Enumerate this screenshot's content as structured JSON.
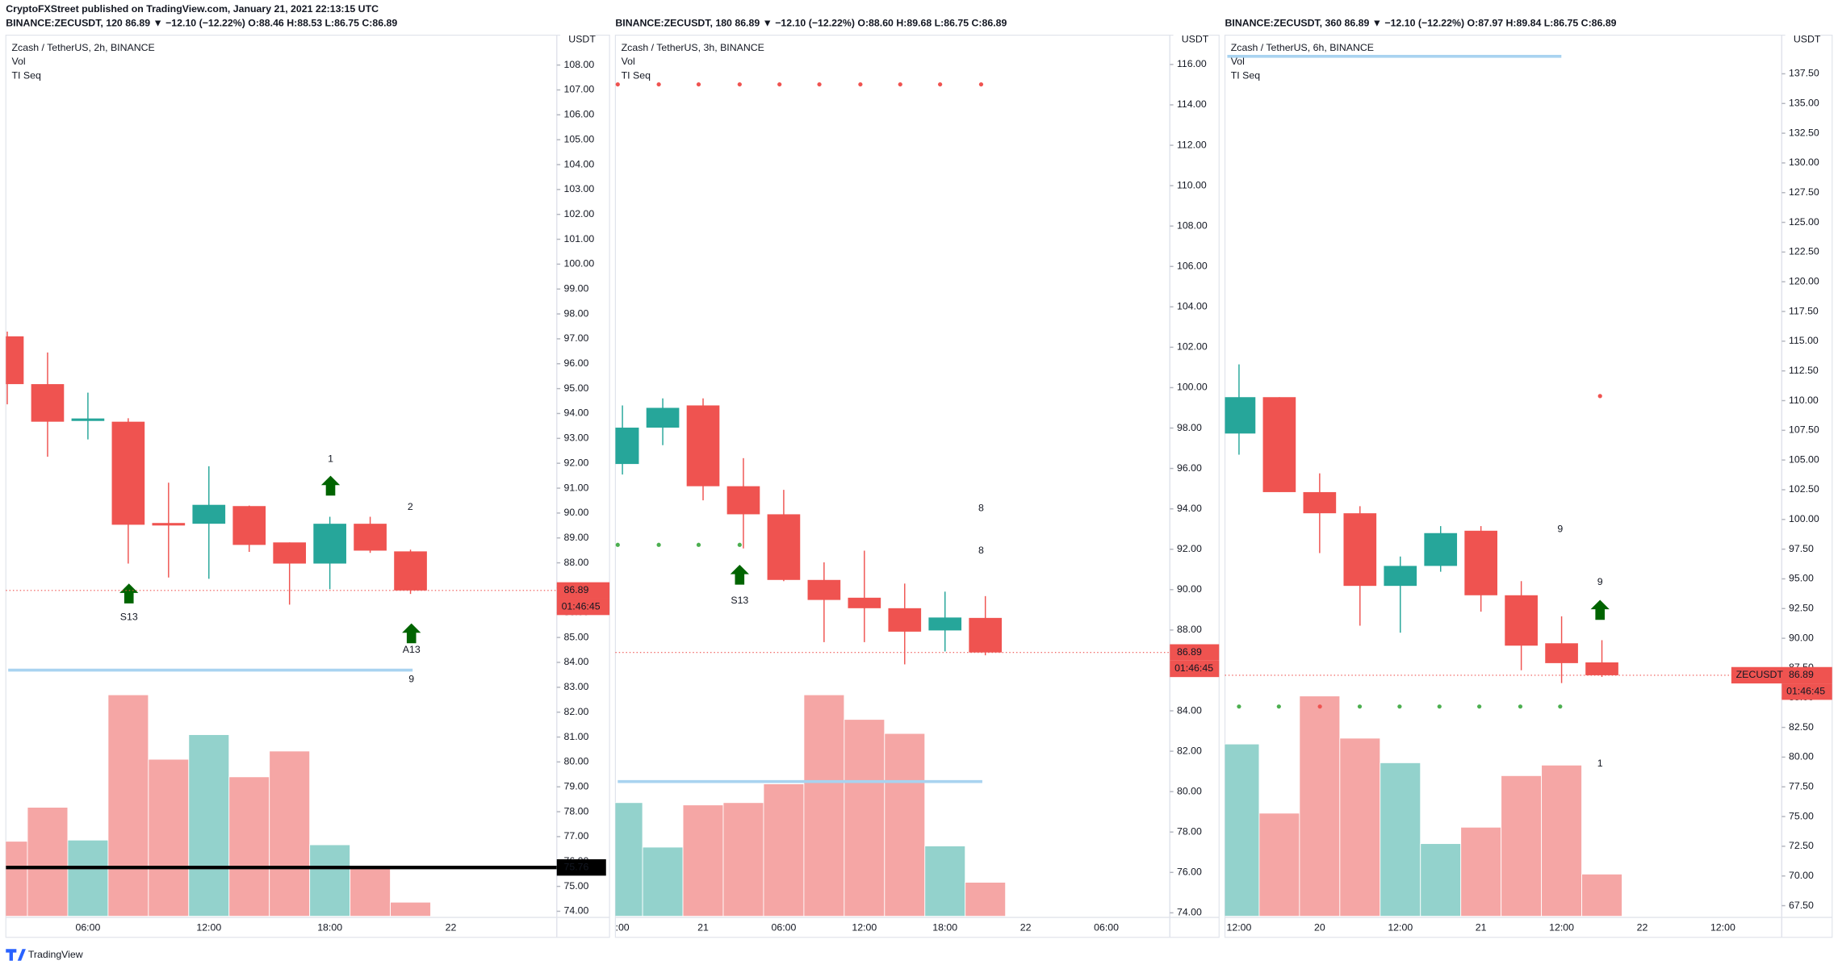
{
  "publisher_line": "CryptoFXStreet published on TradingView.com, January 21, 2021 22:13:15 UTC",
  "footer": "TradingView",
  "chart_data": [
    {
      "type": "candlestick",
      "symbol_line": "BINANCE:ZECUSDT, 120 86.89 ▼ −12.10 (−12.22%) O:88.46 H:88.53 L:86.75 C:86.89",
      "title": "Zcash / TetherUS, 2h, BINANCE",
      "indicators": [
        "Vol",
        "TI Seq"
      ],
      "unit": "USDT",
      "categories": [
        null,
        null,
        "06:00",
        null,
        null,
        "12:00",
        null,
        null,
        "18:00",
        null,
        null,
        "22"
      ],
      "open": [
        97.1,
        95.18,
        93.7,
        93.67,
        89.6,
        89.57,
        90.28,
        88.82,
        87.97,
        89.57,
        88.46,
        null
      ],
      "high": [
        97.29,
        96.45,
        94.84,
        93.81,
        91.22,
        91.88,
        90.3,
        88.82,
        89.85,
        89.85,
        88.53,
        null
      ],
      "low": [
        94.37,
        92.26,
        92.96,
        87.97,
        87.41,
        87.36,
        88.44,
        86.32,
        86.94,
        88.4,
        86.75,
        null
      ],
      "close": [
        95.18,
        93.67,
        93.8,
        89.53,
        89.5,
        90.33,
        88.72,
        87.97,
        89.57,
        88.49,
        86.89,
        null
      ],
      "volume": [
        64,
        93,
        65,
        189,
        134,
        155,
        119,
        141,
        61,
        42,
        12,
        null
      ],
      "up_color": "#26a69a",
      "down_color": "#ef5350",
      "volume_up_color": "#93d2cc",
      "volume_down_color": "#f5a6a5",
      "ylim": [
        73.8,
        109.2
      ],
      "yticks": [
        {
          "value": 74,
          "label": "74.00"
        },
        {
          "value": 75,
          "label": "75.00"
        },
        {
          "value": 76,
          "label": "76.00"
        },
        {
          "value": 77,
          "label": "77.00"
        },
        {
          "value": 78,
          "label": "78.00"
        },
        {
          "value": 79,
          "label": "79.00"
        },
        {
          "value": 80,
          "label": "80.00"
        },
        {
          "value": 81,
          "label": "81.00"
        },
        {
          "value": 82,
          "label": "82.00"
        },
        {
          "value": 83,
          "label": "83.00"
        },
        {
          "value": 84,
          "label": "84.00"
        },
        {
          "value": 85,
          "label": "85.00"
        },
        {
          "value": 86,
          "label": "86.00"
        },
        {
          "value": 87,
          "label": "87.00"
        },
        {
          "value": 88,
          "label": "88.00"
        },
        {
          "value": 89,
          "label": "89.00"
        },
        {
          "value": 90,
          "label": "90.00"
        },
        {
          "value": 91,
          "label": "91.00"
        },
        {
          "value": 92,
          "label": "92.00"
        },
        {
          "value": 93,
          "label": "93.00"
        },
        {
          "value": 94,
          "label": "94.00"
        },
        {
          "value": 95,
          "label": "95.00"
        },
        {
          "value": 96,
          "label": "96.00"
        },
        {
          "value": 97,
          "label": "97.00"
        },
        {
          "value": 98,
          "label": "98.00"
        },
        {
          "value": 99,
          "label": "99.00"
        },
        {
          "value": 100,
          "label": "100.00"
        },
        {
          "value": 101,
          "label": "101.00"
        },
        {
          "value": 102,
          "label": "102.00"
        },
        {
          "value": 103,
          "label": "103.00"
        },
        {
          "value": 104,
          "label": "104.00"
        },
        {
          "value": 105,
          "label": "105.00"
        },
        {
          "value": 106,
          "label": "106.00"
        },
        {
          "value": 107,
          "label": "107.00"
        },
        {
          "value": 108,
          "label": "108.00"
        }
      ],
      "grid": false,
      "last_price": 86.89,
      "countdown": "01:46:45",
      "level_line": {
        "value": 75.76,
        "color": "#000000"
      },
      "range_line": {
        "value": 83.69,
        "color": "#a9d3f0"
      },
      "annotations": [
        {
          "text": "S13",
          "color": "#f5a11c"
        },
        {
          "text": "1",
          "color": "#089981"
        },
        {
          "text": "2",
          "color": "#ef5350"
        },
        {
          "text": "A13",
          "color": "#2196f3"
        },
        {
          "text": "9",
          "color": "#ef5350"
        }
      ]
    },
    {
      "type": "candlestick",
      "symbol_line": "BINANCE:ZECUSDT, 180 86.89 ▼ −12.10 (−12.22%) O:88.60 H:89.68 L:86.75 C:86.89",
      "title": "Zcash / TetherUS, 3h, BINANCE",
      "indicators": [
        "Vol",
        "TI Seq"
      ],
      "unit": "USDT",
      "categories": [
        ":00",
        null,
        "21",
        null,
        "06:00",
        null,
        "12:00",
        null,
        "18:00",
        null,
        "22",
        null,
        "06:00"
      ],
      "open": [
        96.22,
        98.02,
        99.12,
        95.12,
        93.73,
        90.48,
        89.6,
        89.08,
        87.98,
        88.6,
        null,
        null,
        null
      ],
      "high": [
        99.12,
        99.47,
        99.47,
        96.51,
        94.94,
        91.35,
        91.93,
        90.3,
        89.9,
        89.68,
        null,
        null,
        null
      ],
      "low": [
        95.7,
        97.15,
        94.42,
        92.04,
        90.42,
        87.4,
        87.4,
        86.3,
        86.94,
        86.75,
        null,
        null,
        null
      ],
      "close": [
        98.02,
        99.0,
        95.12,
        93.73,
        90.48,
        89.49,
        89.08,
        87.92,
        88.62,
        86.89,
        null,
        null,
        null
      ],
      "volume": [
        97,
        59,
        95,
        97,
        113,
        189,
        168,
        156,
        60,
        29,
        null,
        null,
        null
      ],
      "up_color": "#26a69a",
      "down_color": "#ef5350",
      "volume_up_color": "#93d2cc",
      "volume_down_color": "#f5a6a5",
      "ylim": [
        73.83,
        117.45
      ],
      "yticks": [
        {
          "value": 74,
          "label": "74.00"
        },
        {
          "value": 76,
          "label": "76.00"
        },
        {
          "value": 78,
          "label": "78.00"
        },
        {
          "value": 80,
          "label": "80.00"
        },
        {
          "value": 82,
          "label": "82.00"
        },
        {
          "value": 84,
          "label": "84.00"
        },
        {
          "value": 86,
          "label": "86.00"
        },
        {
          "value": 88,
          "label": "88.00"
        },
        {
          "value": 90,
          "label": "90.00"
        },
        {
          "value": 92,
          "label": "92.00"
        },
        {
          "value": 94,
          "label": "94.00"
        },
        {
          "value": 96,
          "label": "96.00"
        },
        {
          "value": 98,
          "label": "98.00"
        },
        {
          "value": 100,
          "label": "100.00"
        },
        {
          "value": 102,
          "label": "102.00"
        },
        {
          "value": 104,
          "label": "104.00"
        },
        {
          "value": 106,
          "label": "106.00"
        },
        {
          "value": 108,
          "label": "108.00"
        },
        {
          "value": 110,
          "label": "110.00"
        },
        {
          "value": 112,
          "label": "112.00"
        },
        {
          "value": 114,
          "label": "114.00"
        },
        {
          "value": 116,
          "label": "116.00"
        }
      ],
      "grid": false,
      "last_price": 86.89,
      "countdown": "01:46:45",
      "range_line": {
        "value": 80.5,
        "color": "#a9d3f0"
      },
      "annotations": [
        {
          "text": "S13",
          "color": "#f5a11c"
        },
        {
          "text": "8",
          "color": "#ef5350"
        },
        {
          "text": "8",
          "color": "#f5a11c"
        }
      ]
    },
    {
      "type": "candlestick",
      "symbol_line": "BINANCE:ZECUSDT, 360 86.89 ▼ −12.10 (−12.22%) O:87.97 H:89.84 L:86.75 C:86.89",
      "title": "Zcash / TetherUS, 6h, BINANCE",
      "indicators": [
        "Vol",
        "TI Seq"
      ],
      "unit": "USDT",
      "categories": [
        "12:00",
        null,
        "20",
        null,
        "12:00",
        null,
        "21",
        null,
        "12:00",
        null,
        "22",
        null,
        "12:00"
      ],
      "open": [
        107.23,
        110.29,
        102.3,
        100.52,
        94.41,
        96.09,
        99.05,
        93.62,
        89.58,
        87.97,
        null,
        null,
        null
      ],
      "high": [
        113.05,
        110.29,
        103.88,
        101.12,
        96.88,
        99.44,
        99.44,
        94.81,
        91.85,
        89.84,
        null,
        null,
        null
      ],
      "low": [
        105.45,
        102.3,
        97.17,
        91.06,
        90.47,
        95.6,
        92.24,
        87.31,
        86.23,
        86.75,
        null,
        null,
        null
      ],
      "close": [
        110.29,
        102.3,
        100.52,
        94.41,
        96.09,
        98.85,
        93.62,
        89.38,
        87.91,
        86.89,
        null,
        null,
        null
      ],
      "volume": [
        147,
        88,
        188,
        152,
        131,
        62,
        76,
        120,
        129,
        36,
        null,
        null,
        null
      ],
      "up_color": "#26a69a",
      "down_color": "#ef5350",
      "volume_up_color": "#93d2cc",
      "volume_down_color": "#f5a6a5",
      "ylim": [
        66.61,
        140.75
      ],
      "yticks": [
        {
          "value": 67.5,
          "label": "67.50"
        },
        {
          "value": 70,
          "label": "70.00"
        },
        {
          "value": 72.5,
          "label": "72.50"
        },
        {
          "value": 75,
          "label": "75.00"
        },
        {
          "value": 77.5,
          "label": "77.50"
        },
        {
          "value": 80,
          "label": "80.00"
        },
        {
          "value": 82.5,
          "label": "82.50"
        },
        {
          "value": 85,
          "label": "85.00"
        },
        {
          "value": 87.5,
          "label": "87.50"
        },
        {
          "value": 90,
          "label": "90.00"
        },
        {
          "value": 92.5,
          "label": "92.50"
        },
        {
          "value": 95,
          "label": "95.00"
        },
        {
          "value": 97.5,
          "label": "97.50"
        },
        {
          "value": 100,
          "label": "100.00"
        },
        {
          "value": 102.5,
          "label": "102.50"
        },
        {
          "value": 105,
          "label": "105.00"
        },
        {
          "value": 107.5,
          "label": "107.50"
        },
        {
          "value": 110,
          "label": "110.00"
        },
        {
          "value": 112.5,
          "label": "112.50"
        },
        {
          "value": 115,
          "label": "115.00"
        },
        {
          "value": 117.5,
          "label": "117.50"
        },
        {
          "value": 120,
          "label": "120.00"
        },
        {
          "value": 122.5,
          "label": "122.50"
        },
        {
          "value": 125,
          "label": "125.00"
        },
        {
          "value": 127.5,
          "label": "127.50"
        },
        {
          "value": 130,
          "label": "130.00"
        },
        {
          "value": 132.5,
          "label": "132.50"
        },
        {
          "value": 135,
          "label": "135.00"
        },
        {
          "value": 137.5,
          "label": "137.50"
        }
      ],
      "grid": false,
      "last_price": 86.89,
      "countdown": "01:46:45",
      "price_symbol": "ZECUSDT",
      "range_line": {
        "value": 138.97,
        "color": "#a9d3f0"
      },
      "annotations": [
        {
          "text": "9",
          "color": "#f5a11c"
        },
        {
          "text": "9",
          "color": "#ef5350"
        },
        {
          "text": "1",
          "color": "#ef5350"
        }
      ]
    }
  ]
}
